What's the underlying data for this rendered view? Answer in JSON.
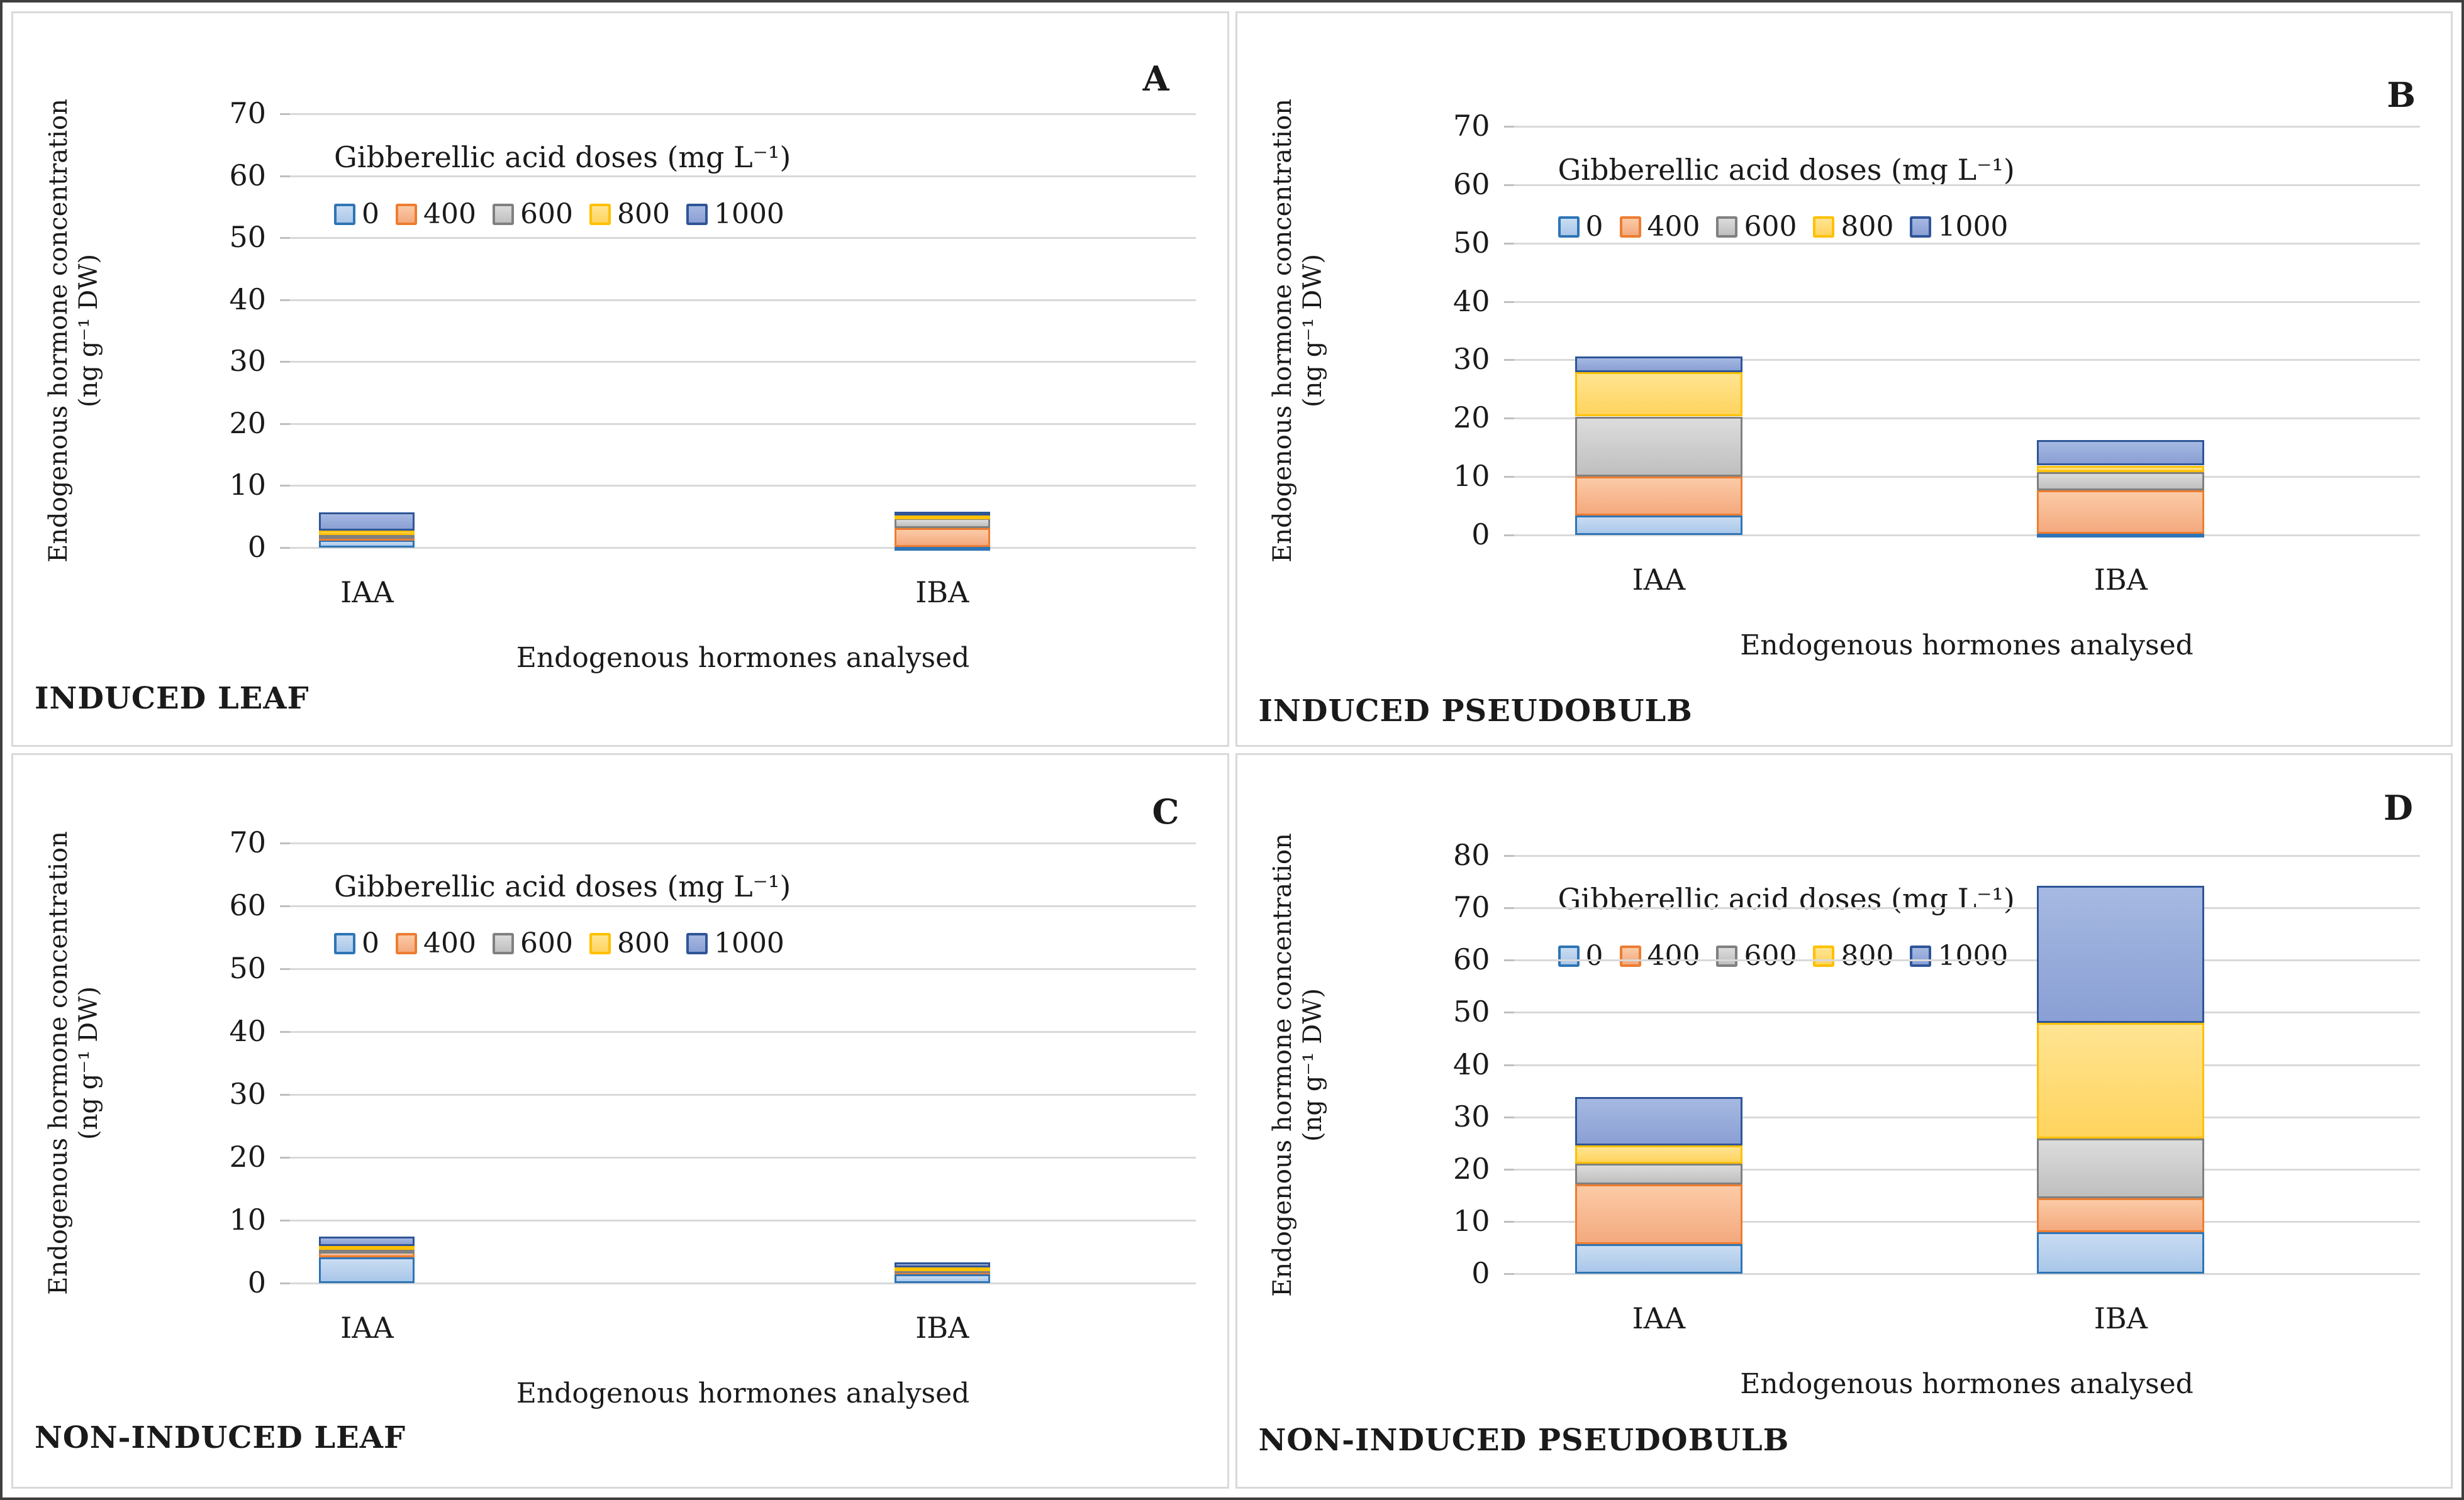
{
  "figure": {
    "y_axis_label_line1": "Endogenous hormone concentration",
    "y_axis_label_line2": "(ng g⁻¹ DW)",
    "x_axis_label": "Endogenous hormones analysed",
    "legend_title": "Gibberellic acid doses (mg L⁻¹)"
  },
  "legend": {
    "doses": [
      "0",
      "400",
      "600",
      "800",
      "1000"
    ]
  },
  "colors": {
    "grid": "#d9d9d9",
    "doses": {
      "0": {
        "fill_top": "#c9dcf2",
        "fill_bottom": "#a9c7e9",
        "border": "#2e75b6"
      },
      "400": {
        "fill_top": "#fbcba7",
        "fill_bottom": "#f4a97e",
        "border": "#ed7d31"
      },
      "600": {
        "fill_top": "#dcdcdc",
        "fill_bottom": "#bfbfbf",
        "border": "#808080"
      },
      "800": {
        "fill_top": "#ffe492",
        "fill_bottom": "#ffd45e",
        "border": "#ffc000"
      },
      "1000": {
        "fill_top": "#a6b9e2",
        "fill_bottom": "#8a9fd4",
        "border": "#2f5597"
      }
    }
  },
  "chart_data": [
    {
      "type": "bar",
      "stacked": true,
      "letter": "A",
      "caption": "INDUCED LEAF",
      "title": "Gibberellic acid doses (mg L⁻¹)",
      "xlabel": "Endogenous hormones analysed",
      "ylabel": "Endogenous hormone concentration (ng g⁻¹ DW)",
      "categories": [
        "IAA",
        "IBA"
      ],
      "series": [
        {
          "name": "0",
          "values": [
            1.2,
            0.1
          ]
        },
        {
          "name": "400",
          "values": [
            0.5,
            3.0
          ]
        },
        {
          "name": "600",
          "values": [
            0.3,
            1.7
          ]
        },
        {
          "name": "800",
          "values": [
            0.7,
            0.4
          ]
        },
        {
          "name": "1000",
          "values": [
            3.0,
            0.6
          ]
        }
      ],
      "ylim": [
        0,
        70
      ],
      "ytick_step": 10,
      "grid": true,
      "legend_position": "upper-left-inside"
    },
    {
      "type": "bar",
      "stacked": true,
      "letter": "B",
      "caption": "INDUCED PSEUDOBULB",
      "title": "Gibberellic acid doses (mg L⁻¹)",
      "xlabel": "Endogenous hormones analysed",
      "ylabel": "Endogenous hormone concentration (ng g⁻¹ DW)",
      "categories": [
        "IAA",
        "IBA"
      ],
      "series": [
        {
          "name": "0",
          "values": [
            3.3,
            0.2
          ]
        },
        {
          "name": "400",
          "values": [
            6.7,
            7.4
          ]
        },
        {
          "name": "600",
          "values": [
            10.3,
            3.2
          ]
        },
        {
          "name": "800",
          "values": [
            7.6,
            1.1
          ]
        },
        {
          "name": "1000",
          "values": [
            2.7,
            4.4
          ]
        }
      ],
      "ylim": [
        0,
        70
      ],
      "ytick_step": 10,
      "grid": true,
      "legend_position": "upper-left-inside"
    },
    {
      "type": "bar",
      "stacked": true,
      "letter": "C",
      "caption": "NON-INDUCED LEAF",
      "title": "Gibberellic acid doses (mg L⁻¹)",
      "xlabel": "Endogenous hormones analysed",
      "ylabel": "Endogenous hormone concentration (ng g⁻¹ DW)",
      "categories": [
        "IAA",
        "IBA"
      ],
      "series": [
        {
          "name": "0",
          "values": [
            4.1,
            1.4
          ]
        },
        {
          "name": "400",
          "values": [
            0.9,
            0.6
          ]
        },
        {
          "name": "600",
          "values": [
            0.3,
            0.2
          ]
        },
        {
          "name": "800",
          "values": [
            0.6,
            0.3
          ]
        },
        {
          "name": "1000",
          "values": [
            1.5,
            0.8
          ]
        }
      ],
      "ylim": [
        0,
        70
      ],
      "ytick_step": 10,
      "grid": true,
      "legend_position": "upper-left-inside"
    },
    {
      "type": "bar",
      "stacked": true,
      "letter": "D",
      "caption": "NON-INDUCED PSEUDOBULB",
      "title": "Gibberellic acid doses (mg L⁻¹)",
      "xlabel": "Endogenous hormones analysed",
      "ylabel": "Endogenous hormone concentration (ng g⁻¹ DW)",
      "categories": [
        "IAA",
        "IBA"
      ],
      "series": [
        {
          "name": "0",
          "values": [
            5.7,
            7.9
          ]
        },
        {
          "name": "400",
          "values": [
            11.4,
            6.5
          ]
        },
        {
          "name": "600",
          "values": [
            4.0,
            11.5
          ]
        },
        {
          "name": "800",
          "values": [
            3.4,
            22.1
          ]
        },
        {
          "name": "1000",
          "values": [
            9.3,
            26.2
          ]
        }
      ],
      "ylim": [
        0,
        80
      ],
      "ytick_step": 10,
      "grid": true,
      "legend_position": "upper-left-inside"
    }
  ]
}
